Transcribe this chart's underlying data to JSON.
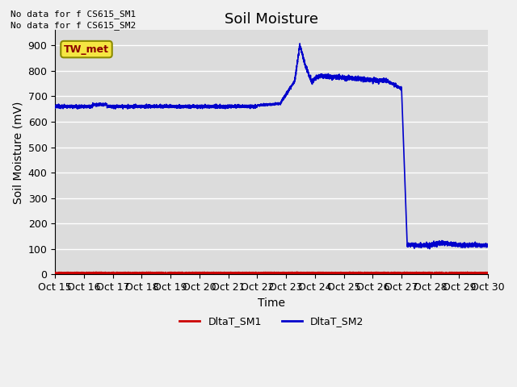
{
  "title": "Soil Moisture",
  "ylabel": "Soil Moisture (mV)",
  "xlabel": "Time",
  "text_no_data_1": "No data for f CS615_SM1",
  "text_no_data_2": "No data for f CS615_SM2",
  "legend_box_label": "TW_met",
  "legend_entries": [
    "DltaT_SM1",
    "DltaT_SM2"
  ],
  "legend_colors": [
    "#cc0000",
    "#0000cc"
  ],
  "x_tick_labels": [
    "Oct 15",
    "Oct 16",
    "Oct 17",
    "Oct 18",
    "Oct 19",
    "Oct 20",
    "Oct 21",
    "Oct 22",
    "Oct 23",
    "Oct 24",
    "Oct 25",
    "Oct 26",
    "Oct 27",
    "Oct 28",
    "Oct 29",
    "Oct 30"
  ],
  "ylim": [
    0,
    960
  ],
  "yticks": [
    0,
    100,
    200,
    300,
    400,
    500,
    600,
    700,
    800,
    900
  ],
  "plot_bg_color": "#dcdcdc",
  "fig_bg_color": "#f0f0f0",
  "grid_color": "#ffffff",
  "sm1_color": "#cc0000",
  "sm2_color": "#0000cc",
  "title_fontsize": 13,
  "axis_label_fontsize": 10,
  "tick_fontsize": 9
}
